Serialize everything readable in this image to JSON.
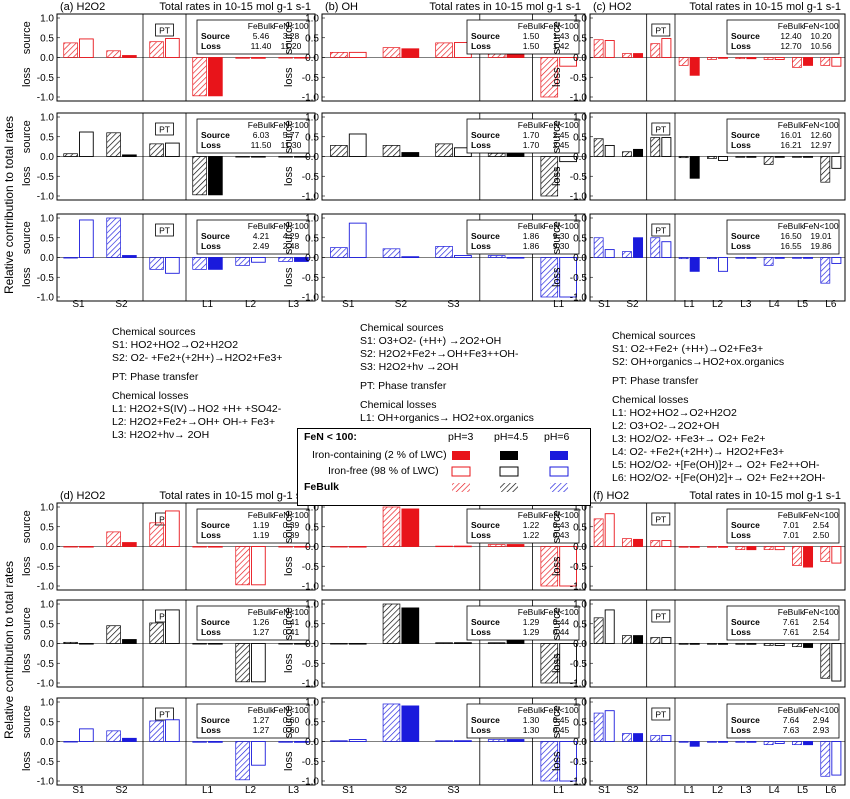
{
  "y_axis_label": "Relative contribution to total rates",
  "row_labels": {
    "source": "source",
    "loss": "loss"
  },
  "pt_label": "PT",
  "table_header": [
    "FeBulk",
    "FeN<100"
  ],
  "table_row_labels": [
    "Source",
    "Loss"
  ],
  "colors": {
    "pH3": "#e8141a",
    "pH4_5": "#000000",
    "pH6": "#1a1adc"
  },
  "chart_data": [
    {
      "type": "bar",
      "panel": "(a) H2O2",
      "title": "Total rates in 10-15 mol g-1 s-1",
      "categories": [
        "S1",
        "S2",
        "PT",
        "L1",
        "L2",
        "L3"
      ],
      "ylim": [
        -1,
        1
      ],
      "yticks": [
        "1.0",
        "0.5",
        "0.0",
        "-0.5",
        "-1.0"
      ],
      "rows": [
        {
          "ph": "3",
          "table": [
            [
              "5.46",
              "3.28"
            ],
            [
              "11.40",
              "11.20"
            ]
          ],
          "bulk": [
            0.37,
            0.17,
            0.4,
            -0.97,
            -0.02,
            -0.01
          ],
          "nano": [
            0.47,
            0.05,
            0.48,
            -0.97,
            -0.02,
            -0.01
          ]
        },
        {
          "ph": "4.5",
          "table": [
            [
              "6.03",
              "5.77"
            ],
            [
              "11.50",
              "11.30"
            ]
          ],
          "bulk": [
            0.07,
            0.6,
            0.32,
            -0.97,
            -0.01,
            -0.01
          ],
          "nano": [
            0.62,
            0.04,
            0.34,
            -0.97,
            -0.01,
            -0.01
          ]
        },
        {
          "ph": "6",
          "table": [
            [
              "4.21",
              "4.29"
            ],
            [
              "2.49",
              "2.48"
            ]
          ],
          "bulk": [
            0.0,
            1.0,
            -0.3,
            -0.3,
            -0.2,
            -0.1
          ],
          "nano": [
            0.95,
            0.05,
            -0.4,
            -0.3,
            -0.12,
            -0.1
          ]
        }
      ]
    },
    {
      "type": "bar",
      "panel": "(b) OH",
      "title": "Total rates in 10-15 mol g-1 s-1",
      "categories": [
        "S1",
        "S2",
        "S3",
        "PT",
        "L1"
      ],
      "ylim": [
        -1,
        1
      ],
      "yticks": [
        "1.0",
        "0.5",
        "0.0",
        "-0.5",
        "-1.0"
      ],
      "rows": [
        {
          "ph": "3",
          "table": [
            [
              "1.50",
              "1.43"
            ],
            [
              "1.50",
              "1.42"
            ]
          ],
          "bulk": [
            0.13,
            0.25,
            0.37,
            0.25,
            -1.0
          ],
          "nano": [
            0.13,
            0.22,
            0.38,
            0.25,
            -0.22
          ]
        },
        {
          "ph": "4.5",
          "table": [
            [
              "1.70",
              "2.45"
            ],
            [
              "1.70",
              "2.45"
            ]
          ],
          "bulk": [
            0.28,
            0.28,
            0.32,
            0.08,
            -1.0
          ],
          "nano": [
            0.57,
            0.1,
            0.22,
            0.08,
            -0.13
          ]
        },
        {
          "ph": "6",
          "table": [
            [
              "1.86",
              "9.30"
            ],
            [
              "1.86",
              "9.30"
            ]
          ],
          "bulk": [
            0.25,
            0.22,
            0.28,
            0.05,
            -1.0
          ],
          "nano": [
            0.87,
            0.02,
            0.05,
            0.0,
            -1.0
          ]
        }
      ]
    },
    {
      "type": "bar",
      "panel": "(c) HO2",
      "title": "Total rates in 10-15 mol g-1 s-1",
      "categories": [
        "S1",
        "S2",
        "PT",
        "L1",
        "L2",
        "L3",
        "L4",
        "L5",
        "L6"
      ],
      "ylim": [
        -1,
        1
      ],
      "yticks": [
        "1.0",
        "0.5",
        "0.0",
        "-0.5",
        "-1.0"
      ],
      "rows": [
        {
          "ph": "3",
          "table": [
            [
              "12.40",
              "10.20"
            ],
            [
              "12.70",
              "10.56"
            ]
          ],
          "bulk": [
            0.45,
            0.1,
            0.35,
            -0.2,
            -0.05,
            -0.03,
            -0.05,
            -0.25,
            -0.2
          ],
          "nano": [
            0.43,
            0.1,
            0.48,
            -0.45,
            -0.02,
            -0.03,
            -0.05,
            -0.2,
            -0.22
          ]
        },
        {
          "ph": "4.5",
          "table": [
            [
              "16.01",
              "12.60"
            ],
            [
              "16.21",
              "12.97"
            ]
          ],
          "bulk": [
            0.45,
            0.12,
            0.48,
            -0.03,
            -0.05,
            -0.02,
            -0.2,
            -0.02,
            -0.65
          ],
          "nano": [
            0.28,
            0.18,
            0.48,
            -0.55,
            -0.1,
            -0.02,
            -0.02,
            -0.02,
            -0.3
          ]
        },
        {
          "ph": "6",
          "table": [
            [
              "16.50",
              "19.01"
            ],
            [
              "16.55",
              "19.86"
            ]
          ],
          "bulk": [
            0.5,
            0.15,
            0.5,
            -0.03,
            -0.03,
            -0.02,
            -0.2,
            -0.02,
            -0.65
          ],
          "nano": [
            0.2,
            0.5,
            0.4,
            -0.35,
            -0.35,
            -0.02,
            -0.02,
            -0.02,
            -0.15
          ]
        }
      ]
    },
    {
      "type": "bar",
      "panel": "(d) H2O2",
      "title": "Total rates in 10-15 mol g-1 s-1",
      "categories": [
        "S1",
        "S2",
        "PT",
        "L1",
        "L2",
        "L3"
      ],
      "ylim": [
        -1,
        1
      ],
      "yticks": [
        "1.0",
        "0.5",
        "0.0",
        "-0.5",
        "-1.0"
      ],
      "rows": [
        {
          "ph": "3",
          "table": [
            [
              "1.19",
              "0.39"
            ],
            [
              "1.19",
              "0.39"
            ]
          ],
          "bulk": [
            0.0,
            0.37,
            0.6,
            -0.01,
            -0.97,
            -0.01
          ],
          "nano": [
            0.0,
            0.1,
            0.9,
            -0.01,
            -0.97,
            -0.01
          ]
        },
        {
          "ph": "4.5",
          "table": [
            [
              "1.26",
              "0.41"
            ],
            [
              "1.27",
              "0.41"
            ]
          ],
          "bulk": [
            0.03,
            0.45,
            0.52,
            -0.01,
            -0.97,
            -0.01
          ],
          "nano": [
            0.0,
            0.1,
            0.85,
            -0.01,
            -0.97,
            -0.01
          ]
        },
        {
          "ph": "6",
          "table": [
            [
              "1.27",
              "0.60"
            ],
            [
              "1.27",
              "0.60"
            ]
          ],
          "bulk": [
            0.0,
            0.27,
            0.52,
            -0.02,
            -0.97,
            -0.02
          ],
          "nano": [
            0.32,
            0.08,
            0.55,
            -0.02,
            -0.6,
            -0.02
          ]
        }
      ]
    },
    {
      "type": "bar",
      "panel": "(e) OH",
      "title": "Total rates in 10-15 mol g-1 s-1",
      "categories": [
        "S1",
        "S2",
        "S3",
        "PT",
        "L1"
      ],
      "ylim": [
        -1,
        1
      ],
      "yticks": [
        "1.0",
        "0.5",
        "0.0",
        "-0.5",
        "-1.0"
      ],
      "rows": [
        {
          "ph": "3",
          "table": [
            [
              "1.22",
              "0.43"
            ],
            [
              "1.22",
              "0.43"
            ]
          ],
          "bulk": [
            0.0,
            1.0,
            0.01,
            0.05,
            -1.0
          ],
          "nano": [
            0.0,
            0.95,
            0.01,
            0.05,
            -1.0
          ]
        },
        {
          "ph": "4.5",
          "table": [
            [
              "1.29",
              "0.44"
            ],
            [
              "1.29",
              "0.44"
            ]
          ],
          "bulk": [
            0.0,
            1.0,
            0.02,
            0.02,
            -1.0
          ],
          "nano": [
            0.0,
            0.9,
            0.02,
            0.08,
            -1.0
          ]
        },
        {
          "ph": "6",
          "table": [
            [
              "1.30",
              "0.45"
            ],
            [
              "1.30",
              "0.45"
            ]
          ],
          "bulk": [
            0.02,
            0.95,
            0.02,
            0.05,
            -1.0
          ],
          "nano": [
            0.05,
            0.9,
            0.02,
            0.05,
            -1.0
          ]
        }
      ]
    },
    {
      "type": "bar",
      "panel": "(f) HO2",
      "title": "Total rates in 10-15 mol g-1 s-1",
      "categories": [
        "S1",
        "S2",
        "PT",
        "L1",
        "L2",
        "L3",
        "L4",
        "L5",
        "L6"
      ],
      "ylim": [
        -1,
        1
      ],
      "yticks": [
        "1.0",
        "0.5",
        "0.0",
        "-0.5",
        "-1.0"
      ],
      "rows": [
        {
          "ph": "3",
          "table": [
            [
              "7.01",
              "2.54"
            ],
            [
              "7.01",
              "2.50"
            ]
          ],
          "bulk": [
            0.7,
            0.2,
            0.15,
            -0.02,
            -0.02,
            -0.08,
            -0.08,
            -0.48,
            -0.38
          ],
          "nano": [
            0.83,
            0.18,
            0.15,
            -0.02,
            -0.02,
            -0.08,
            -0.08,
            -0.52,
            -0.42
          ]
        },
        {
          "ph": "4.5",
          "table": [
            [
              "7.61",
              "2.54"
            ],
            [
              "7.61",
              "2.54"
            ]
          ],
          "bulk": [
            0.65,
            0.2,
            0.15,
            -0.02,
            -0.02,
            -0.02,
            -0.05,
            -0.08,
            -0.88
          ],
          "nano": [
            0.85,
            0.2,
            0.15,
            -0.02,
            -0.02,
            -0.02,
            -0.05,
            -0.1,
            -0.95
          ]
        },
        {
          "ph": "6",
          "table": [
            [
              "7.64",
              "2.94"
            ],
            [
              "7.63",
              "2.93"
            ]
          ],
          "bulk": [
            0.72,
            0.2,
            0.15,
            -0.02,
            -0.02,
            -0.02,
            -0.08,
            -0.08,
            -0.88
          ],
          "nano": [
            0.78,
            0.2,
            0.15,
            -0.12,
            -0.02,
            -0.02,
            -0.05,
            -0.08,
            -0.85
          ]
        }
      ]
    }
  ],
  "legend_left": {
    "chemical_sources_title": "Chemical sources",
    "sources": [
      "S1: HO2+HO2→O2+H2O2",
      "S2: O2- +Fe2+(+2H+)→H2O2+Fe3+"
    ],
    "pt": "PT: Phase transfer",
    "chemical_losses_title": "Chemical losses",
    "losses": [
      "L1: H2O2+S(IV)→HO2 +H+ +SO42-",
      "L2: H2O2+Fe2+→OH+ OH-+ Fe3+",
      "L3: H2O2+hν→ 2OH"
    ]
  },
  "legend_mid": {
    "chemical_sources_title": "Chemical sources",
    "sources": [
      "S1: O3+O2- (+H+) →2O2+OH",
      "S2: H2O2+Fe2+→OH+Fe3++OH-",
      "S3: H2O2+hν →2OH"
    ],
    "pt": "PT: Phase transfer",
    "chemical_losses_title": "Chemical losses",
    "losses": [
      "L1: OH+organics→ HO2+ox.organics"
    ]
  },
  "legend_right": {
    "chemical_sources_title": "Chemical sources",
    "sources": [
      "S1: O2-+Fe2+ (+H+)→O2+Fe3+",
      "S2: OH+organics→HO2+ox.organics"
    ],
    "pt": "PT: Phase transfer",
    "chemical_losses_title": "Chemical losses",
    "losses": [
      "L1: HO2+HO2→O2+H2O2",
      "L2: O3+O2-→2O2+OH",
      "L3: HO2/O2- +Fe3+→ O2+ Fe2+",
      "L4: O2- +Fe2+(+2H+)→ H2O2+Fe3+",
      "L5: HO2/O2- +[Fe(OH)]2+→ O2+ Fe2++OH-",
      "L6: HO2/O2- +[Fe(OH)2]+→ O2+ Fe2++2OH-"
    ]
  },
  "fe_legend": {
    "title": "FeN < 100:",
    "iron_containing": "Iron-containing (2 % of LWC)",
    "iron_free": "Iron-free (98 % of LWC)",
    "febulk": "FeBulk",
    "ph_labels": [
      "pH=3",
      "pH=4.5",
      "pH=6"
    ]
  }
}
